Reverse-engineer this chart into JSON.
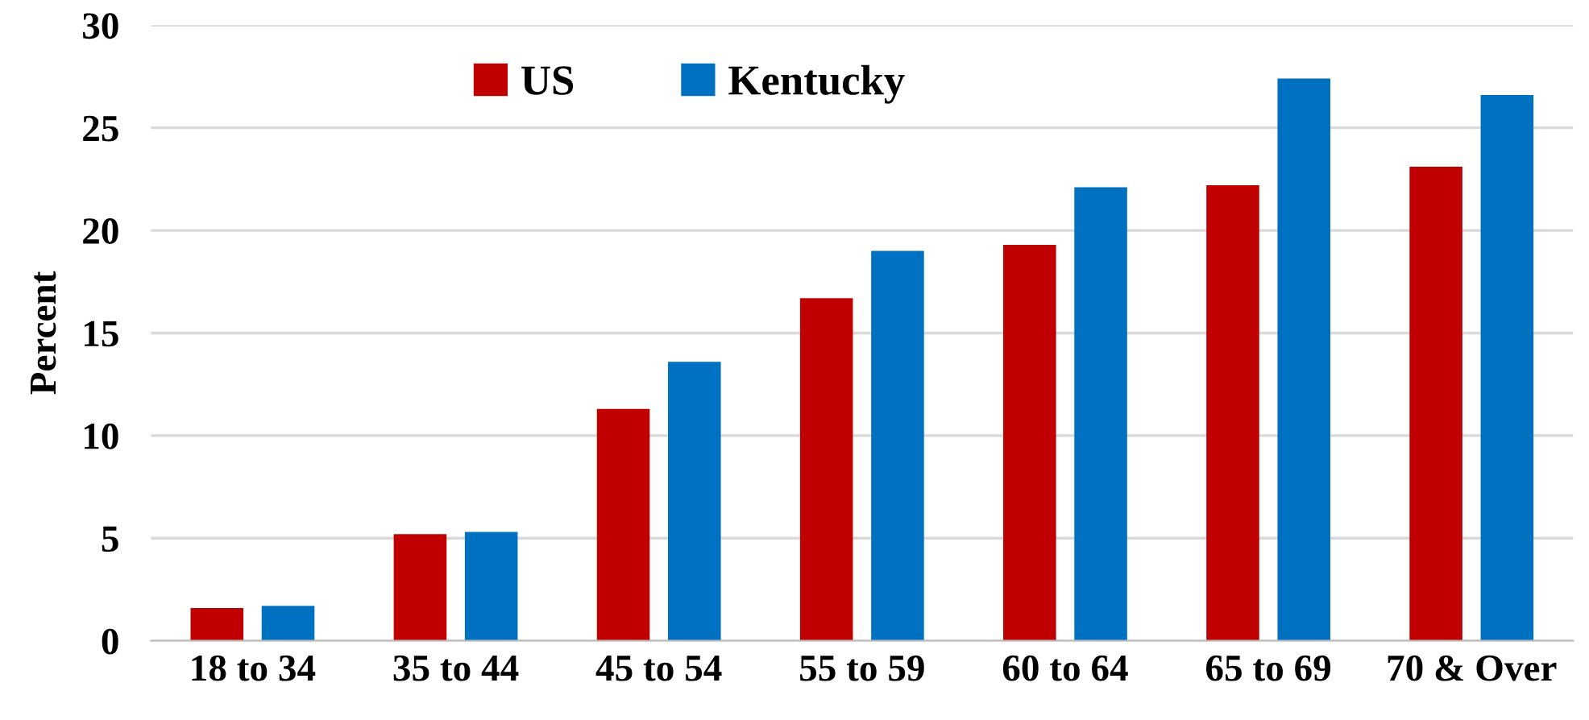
{
  "chart_data": {
    "type": "bar",
    "ylabel": "Percent",
    "categories": [
      "18 to 34",
      "35 to 44",
      "45 to 54",
      "55 to 59",
      "60 to 64",
      "65 to 69",
      "70 & Over"
    ],
    "series": [
      {
        "name": "US",
        "color": "#c00000",
        "values": [
          1.6,
          5.2,
          11.3,
          16.7,
          19.3,
          22.2,
          23.1
        ]
      },
      {
        "name": "Kentucky",
        "color": "#0070c0",
        "values": [
          1.7,
          5.3,
          13.6,
          19.0,
          22.1,
          27.4,
          26.6
        ]
      }
    ],
    "ylim": [
      0,
      30
    ],
    "yticks": [
      0,
      5,
      10,
      15,
      20,
      25,
      30
    ],
    "grid": "y",
    "legend": "top left"
  }
}
